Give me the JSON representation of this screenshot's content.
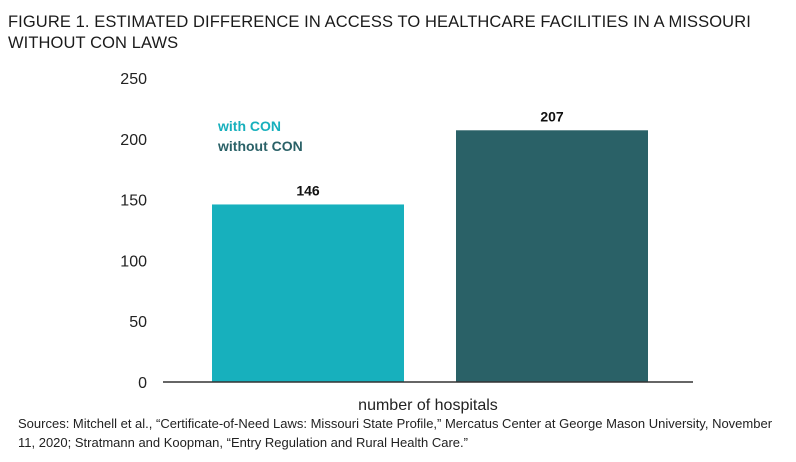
{
  "title": "FIGURE 1. ESTIMATED DIFFERENCE IN ACCESS TO HEALTHCARE FACILITIES IN A MISSOURI WITHOUT CON LAWS",
  "sources": "Sources: Mitchell et al., “Certificate-of-Need Laws: Missouri State Profile,” Mercatus Center at George Mason University, November 11, 2020; Stratmann and Koopman, “Entry Regulation and Rural Health Care.”",
  "colors": {
    "with_con": "#17b0bd",
    "without_con": "#2a6167",
    "axis": "#333333"
  },
  "chart_data": {
    "type": "bar",
    "title": "FIGURE 1. ESTIMATED DIFFERENCE IN ACCESS TO HEALTHCARE FACILITIES IN A MISSOURI WITHOUT CON LAWS",
    "xlabel": "number of hospitals",
    "ylabel": "",
    "categories": [
      "with CON",
      "without CON"
    ],
    "values": [
      146,
      207
    ],
    "data_labels": [
      "146",
      "207"
    ],
    "yticks": [
      0,
      50,
      100,
      150,
      200,
      250
    ],
    "ylim": [
      0,
      250
    ],
    "grid": false,
    "legend": {
      "placement": "top-left",
      "entries": [
        "with CON",
        "without CON"
      ]
    }
  }
}
